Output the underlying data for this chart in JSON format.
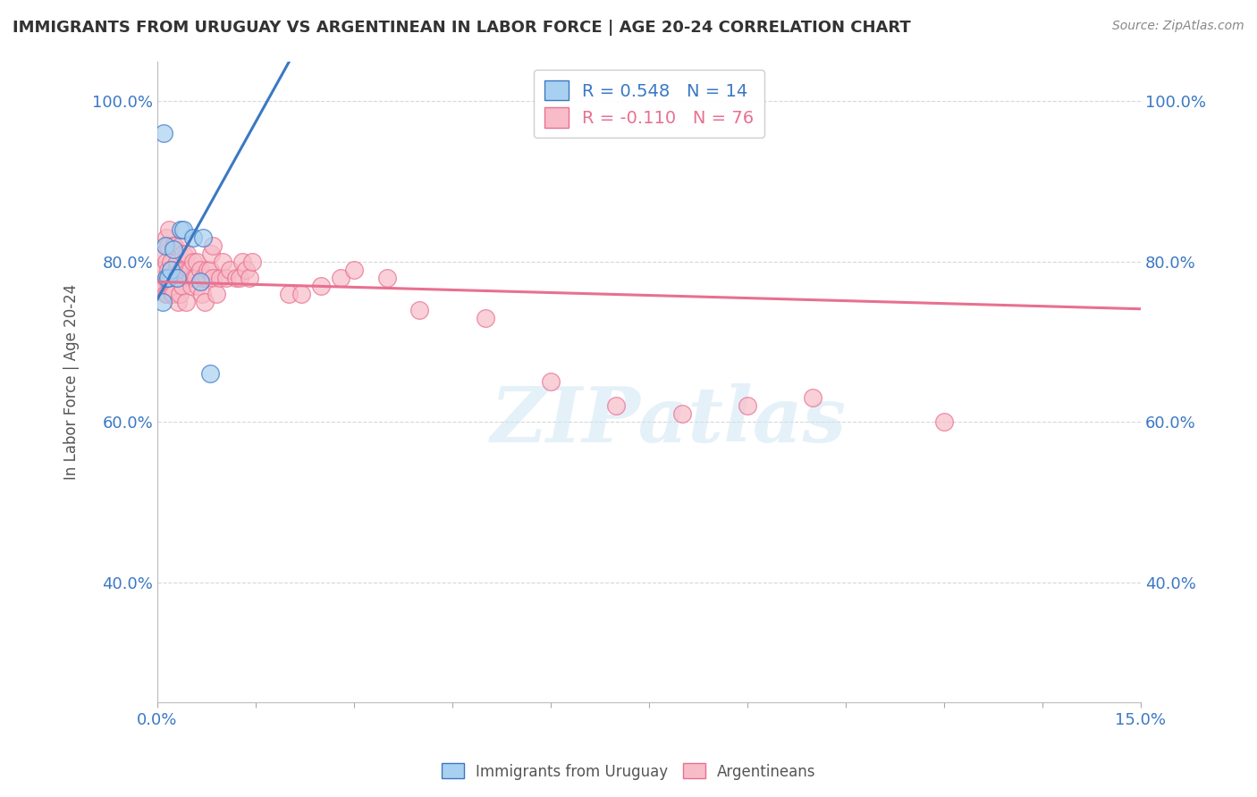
{
  "title": "IMMIGRANTS FROM URUGUAY VS ARGENTINEAN IN LABOR FORCE | AGE 20-24 CORRELATION CHART",
  "source": "Source: ZipAtlas.com",
  "ylabel": "In Labor Force | Age 20-24",
  "xlim": [
    0.0,
    0.15
  ],
  "ylim": [
    0.25,
    1.05
  ],
  "xtick_labels": [
    "0.0%",
    "15.0%"
  ],
  "ytick_labels": [
    "40.0%",
    "60.0%",
    "80.0%",
    "100.0%"
  ],
  "ytick_positions": [
    0.4,
    0.6,
    0.8,
    1.0
  ],
  "uruguay_color": "#a8d0f0",
  "argentina_color": "#f8bcc8",
  "line_uruguay_color": "#3b78c4",
  "line_argentina_color": "#e87090",
  "uruguay_r": 0.548,
  "uruguay_n": 14,
  "argentina_r": -0.11,
  "argentina_n": 76,
  "uruguay_x": [
    0.0008,
    0.001,
    0.0012,
    0.0014,
    0.0016,
    0.002,
    0.0025,
    0.003,
    0.0035,
    0.004,
    0.0055,
    0.0065,
    0.007,
    0.008
  ],
  "uruguay_y": [
    0.75,
    0.96,
    0.82,
    0.78,
    0.78,
    0.79,
    0.815,
    0.78,
    0.84,
    0.84,
    0.83,
    0.775,
    0.83,
    0.66
  ],
  "argentina_x": [
    0.0008,
    0.0009,
    0.001,
    0.001,
    0.001,
    0.0012,
    0.0013,
    0.0014,
    0.0015,
    0.0016,
    0.0016,
    0.0018,
    0.0018,
    0.002,
    0.002,
    0.0022,
    0.0022,
    0.0024,
    0.0025,
    0.0026,
    0.0028,
    0.003,
    0.003,
    0.0032,
    0.0034,
    0.0035,
    0.0036,
    0.0038,
    0.004,
    0.0042,
    0.0044,
    0.0045,
    0.0048,
    0.005,
    0.005,
    0.0052,
    0.0055,
    0.0056,
    0.0058,
    0.006,
    0.0062,
    0.0065,
    0.0068,
    0.007,
    0.0072,
    0.0075,
    0.0076,
    0.008,
    0.0082,
    0.0084,
    0.0085,
    0.009,
    0.0095,
    0.01,
    0.0105,
    0.011,
    0.012,
    0.0125,
    0.013,
    0.0135,
    0.014,
    0.0145,
    0.02,
    0.022,
    0.025,
    0.028,
    0.03,
    0.035,
    0.04,
    0.05,
    0.06,
    0.07,
    0.08,
    0.09,
    0.1,
    0.12
  ],
  "argentina_y": [
    0.77,
    0.78,
    0.79,
    0.81,
    0.77,
    0.76,
    0.8,
    0.83,
    0.76,
    0.79,
    0.82,
    0.84,
    0.78,
    0.78,
    0.8,
    0.76,
    0.79,
    0.76,
    0.82,
    0.82,
    0.79,
    0.78,
    0.8,
    0.75,
    0.76,
    0.79,
    0.82,
    0.77,
    0.81,
    0.79,
    0.75,
    0.81,
    0.79,
    0.78,
    0.79,
    0.77,
    0.8,
    0.78,
    0.78,
    0.8,
    0.77,
    0.79,
    0.76,
    0.78,
    0.75,
    0.78,
    0.79,
    0.79,
    0.81,
    0.78,
    0.82,
    0.76,
    0.78,
    0.8,
    0.78,
    0.79,
    0.78,
    0.78,
    0.8,
    0.79,
    0.78,
    0.8,
    0.76,
    0.76,
    0.77,
    0.78,
    0.79,
    0.78,
    0.74,
    0.73,
    0.65,
    0.62,
    0.61,
    0.62,
    0.63,
    0.6
  ],
  "watermark_text": "ZIPatlas",
  "background_color": "#ffffff",
  "grid_color": "#d8d8d8",
  "tick_color": "#3b78c4"
}
